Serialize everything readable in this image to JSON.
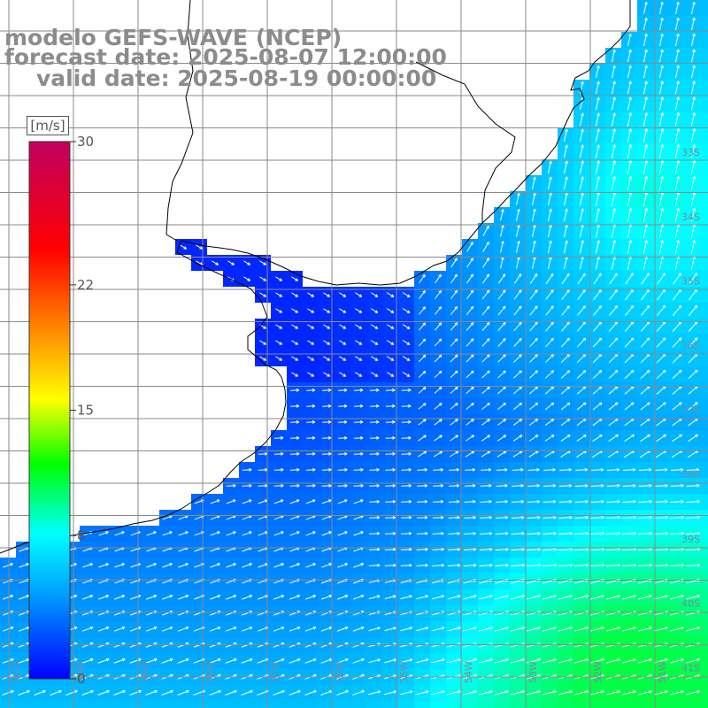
{
  "title": {
    "line1": "modelo GEFS-WAVE (NCEP)",
    "line2": "forecast date: 2025-08-07 12:00:00",
    "line3": "valid date: 2025-08-19 00:00:00"
  },
  "colorbar": {
    "unit": "[m/s]",
    "ticks": [
      {
        "label": "30",
        "value": 30
      },
      {
        "label": "22",
        "value": 22
      },
      {
        "label": "15",
        "value": 15
      },
      {
        "label": "8",
        "value": 8
      },
      {
        "label": "0",
        "value": 0
      }
    ],
    "colormap": [
      "#0000ff",
      "#00a0ff",
      "#00ffff",
      "#00ff00",
      "#ffff00",
      "#ff8000",
      "#ff0000",
      "#c00060"
    ]
  },
  "latitude_labels": [
    "33S",
    "34S",
    "35S",
    "36S",
    "37S",
    "38S",
    "39S",
    "40S",
    "41S"
  ],
  "longitude_labels": [
    "61W",
    "60W",
    "59W",
    "58W",
    "57W",
    "56W",
    "55W",
    "54W",
    "53W",
    "52W",
    "51W"
  ],
  "colors": {
    "land": "#ffffff",
    "coast": "#000000",
    "grid": "#8a8a8a",
    "arrow": "#ffffff",
    "title": "#8c8c8c"
  }
}
